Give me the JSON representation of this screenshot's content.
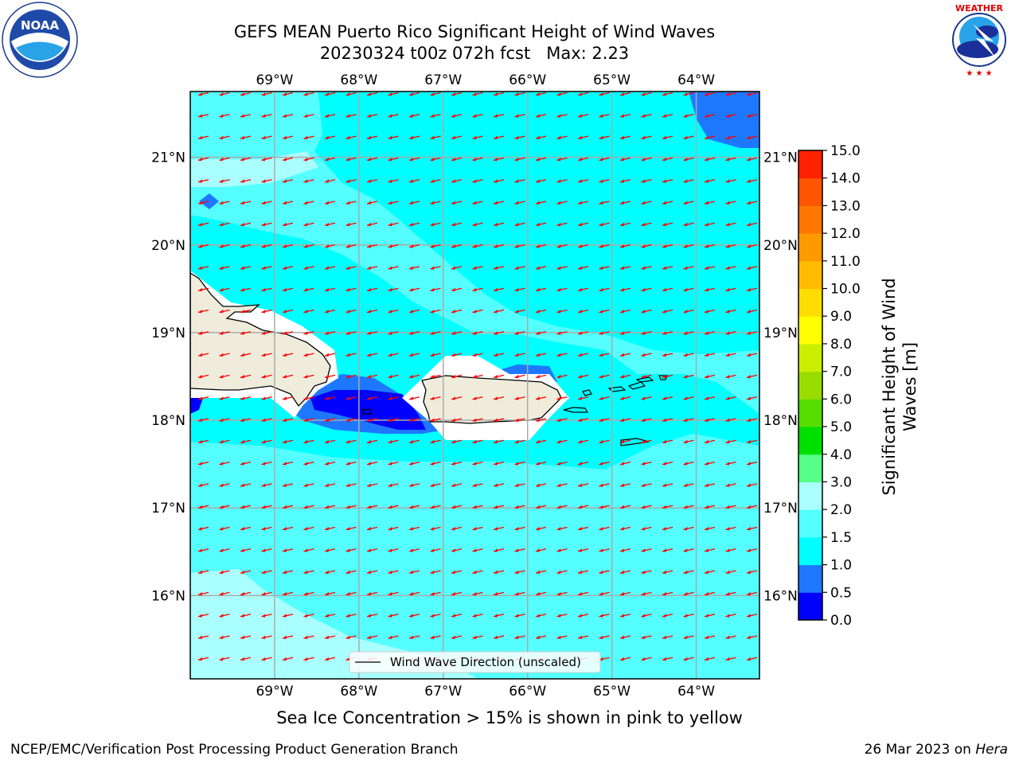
{
  "title": {
    "line1": "GEFS MEAN Puerto Rico Significant Height of Wind Waves",
    "line2": "20230324 t00z 072h fcst   Max: 2.23"
  },
  "logos": {
    "left": "noaa-logo",
    "left_text": "NOAA",
    "left_ring_text": "NATIONAL OCEANIC AND ATMOSPHERIC ADMINISTRATION · U.S. DEPARTMENT OF COMMERCE",
    "right": "nws-logo",
    "right_ring_text": "NATIONAL WEATHER SERVICE"
  },
  "map": {
    "lon_labels": [
      "69°W",
      "68°W",
      "67°W",
      "66°W",
      "65°W",
      "64°W"
    ],
    "lat_labels": [
      "21°N",
      "20°N",
      "19°N",
      "18°N",
      "17°N",
      "16°N"
    ],
    "lon_range": [
      -70,
      -63.25
    ],
    "lat_range": [
      15.05,
      21.75
    ],
    "legend": "Wind Wave Direction (unscaled)",
    "arrow_color": "#ff0000",
    "land_color": "#efecdc",
    "grid": true
  },
  "colorbar": {
    "title_line1": "Significant Height of Wind",
    "title_line2": "Waves [m]",
    "labels": [
      "0.0",
      "0.5",
      "1.0",
      "1.5",
      "2.0",
      "3.0",
      "4.0",
      "5.0",
      "6.0",
      "7.0",
      "8.0",
      "9.0",
      "10.0",
      "11.0",
      "12.0",
      "13.0",
      "14.0",
      "15.0"
    ],
    "colors": [
      "#0000ff",
      "#1e78ff",
      "#00ffff",
      "#55ffff",
      "#aaffff",
      "#55ff88",
      "#00e000",
      "#55dd00",
      "#99dd00",
      "#ccee00",
      "#ffff00",
      "#ffdd00",
      "#ffbb00",
      "#ff9900",
      "#ff7700",
      "#ff5500",
      "#ff2200"
    ]
  },
  "chart_data": {
    "type": "heatmap",
    "variable": "Significant Height of Wind Waves",
    "units": "m",
    "max": 2.23,
    "xlim": [
      -70,
      -63.25
    ],
    "ylim": [
      15.05,
      21.75
    ],
    "regions": [
      {
        "level": "1.5-2.0",
        "description": "broad band north of islands"
      },
      {
        "level": "1.0-1.5",
        "description": "most of domain"
      },
      {
        "level": "2.0-3.0",
        "description": "southwest corner"
      },
      {
        "level": "0.5-1.0",
        "description": "northeast corner and Mona Passage"
      },
      {
        "level": "0.0-0.5",
        "description": "Mona Passage core"
      }
    ]
  },
  "note": "Sea Ice Concentration > 15% is shown in pink to yellow",
  "footer": {
    "left": "NCEP/EMC/Verification Post Processing Product Generation Branch",
    "right_prefix": "26 Mar 2023 on ",
    "right_host": "Hera"
  }
}
